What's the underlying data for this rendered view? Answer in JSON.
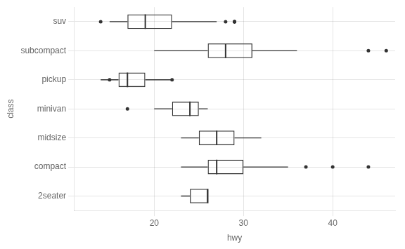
{
  "chart_data": {
    "type": "boxplot",
    "orientation": "horizontal",
    "categories": [
      "2seater",
      "compact",
      "midsize",
      "minivan",
      "pickup",
      "subcompact",
      "suv"
    ],
    "boxes": [
      {
        "q1": 24,
        "median": 26,
        "q3": 26,
        "whisker_low": 23,
        "whisker_high": 26,
        "outliers": []
      },
      {
        "q1": 26,
        "median": 27,
        "q3": 30,
        "whisker_low": 23,
        "whisker_high": 35,
        "outliers": [
          37,
          40,
          44
        ]
      },
      {
        "q1": 25,
        "median": 27,
        "q3": 29,
        "whisker_low": 23,
        "whisker_high": 32,
        "outliers": []
      },
      {
        "q1": 22,
        "median": 24,
        "q3": 25,
        "whisker_low": 20,
        "whisker_high": 26,
        "outliers": [
          17
        ]
      },
      {
        "q1": 16,
        "median": 17,
        "q3": 19,
        "whisker_low": 14,
        "whisker_high": 22,
        "outliers": [
          15,
          22
        ]
      },
      {
        "q1": 26,
        "median": 28,
        "q3": 31,
        "whisker_low": 20,
        "whisker_high": 36,
        "outliers": [
          44,
          46
        ]
      },
      {
        "q1": 17,
        "median": 19,
        "q3": 22,
        "whisker_low": 15,
        "whisker_high": 27,
        "outliers": [
          14,
          28,
          29,
          29,
          29,
          29
        ]
      }
    ],
    "xlabel": "hwy",
    "ylabel": "class",
    "xlim": [
      11,
      47
    ],
    "xticks": [
      20,
      30,
      40
    ],
    "color": "#333333",
    "grid": true
  }
}
